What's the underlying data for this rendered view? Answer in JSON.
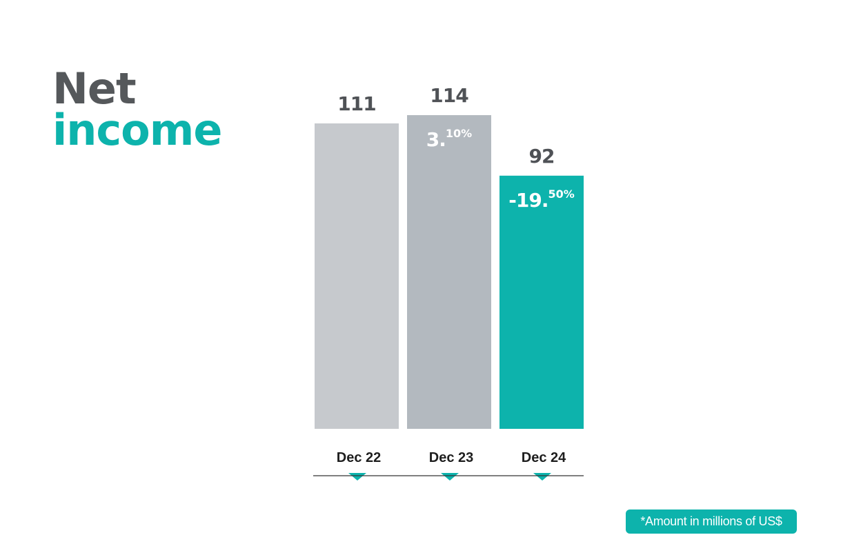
{
  "heading": {
    "line1": "Net",
    "line2": "income"
  },
  "note": "*Amount in millions of US$",
  "colors": {
    "bar1": "#c6c9cd",
    "bar2": "#b3b9bf",
    "bar3": "#0db3ac",
    "value_text": "#4f5256",
    "axis": "#333333",
    "marker": "#0db3ac"
  },
  "chart_data": {
    "type": "bar",
    "categories": [
      "Dec 22",
      "Dec 23",
      "Dec 24"
    ],
    "values": [
      111,
      114,
      92
    ],
    "value_labels": [
      "111",
      "114",
      "92"
    ],
    "changes": [
      null,
      {
        "int": "3.",
        "dec": "10%"
      },
      {
        "int": "-19.",
        "dec": "50%"
      }
    ],
    "ylim": [
      0,
      114
    ],
    "grid": false,
    "legend": "none"
  }
}
